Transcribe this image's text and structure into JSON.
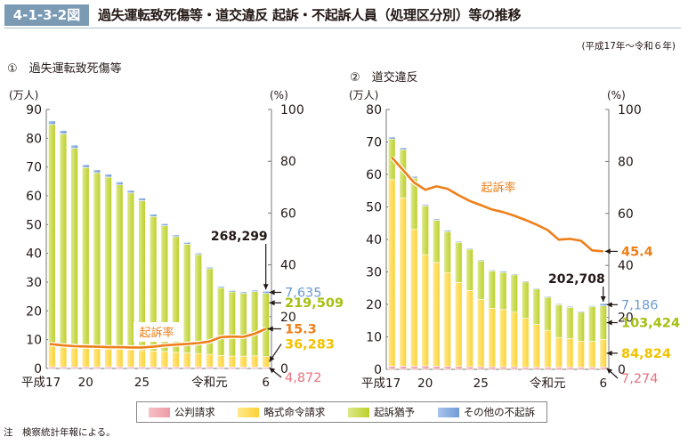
{
  "header": {
    "figure_number": "4-1-3-2図",
    "title": "過失運転致死傷等・道交違反 起訴・不起訴人員（処理区分別）等の推移",
    "period": "(平成17年～令和６年)"
  },
  "legend": [
    {
      "label": "公判請求",
      "color": "#f0a0a8"
    },
    {
      "label": "略式命令請求",
      "color": "#fcd94a"
    },
    {
      "label": "起訴猶予",
      "color": "#c7d840"
    },
    {
      "label": "その他の不起訴",
      "color": "#7ea7dc"
    }
  ],
  "note": "注　検察統計年報による。",
  "colors": {
    "rate_line": "#ee7f1a",
    "axis": "#777777"
  },
  "chart_data": [
    {
      "type": "bar",
      "stacked": true,
      "title": "①　過失運転致死傷等",
      "ylabel": "(万人)",
      "y2label": "(%)",
      "ylim": [
        0,
        90
      ],
      "yticks": [
        0,
        10,
        20,
        30,
        40,
        50,
        60,
        70,
        80,
        90
      ],
      "y2lim": [
        0,
        100
      ],
      "y2ticks": [
        0,
        20,
        40,
        60,
        80,
        100
      ],
      "categories": [
        "H17",
        "H18",
        "H19",
        "H20",
        "H21",
        "H22",
        "H23",
        "H24",
        "H25",
        "H26",
        "H27",
        "H28",
        "H29",
        "H30",
        "R1",
        "R2",
        "R3",
        "R4",
        "R5",
        "R6"
      ],
      "xtick_labels": [
        {
          "index": 0,
          "label": "平成17"
        },
        {
          "index": 3,
          "label": "20"
        },
        {
          "index": 8,
          "label": "25"
        },
        {
          "index": 14,
          "label": "令和元"
        },
        {
          "index": 19,
          "label": "6"
        }
      ],
      "series": [
        {
          "name": "公判請求",
          "values": [
            0.6,
            0.6,
            0.6,
            0.6,
            0.6,
            0.6,
            0.6,
            0.6,
            0.6,
            0.6,
            0.6,
            0.6,
            0.6,
            0.6,
            0.6,
            0.5,
            0.5,
            0.5,
            0.5,
            0.49
          ]
        },
        {
          "name": "略式命令請求",
          "values": [
            8.3,
            8.0,
            7.5,
            7.0,
            6.8,
            6.5,
            6.2,
            5.9,
            5.6,
            5.5,
            5.3,
            5.0,
            4.8,
            4.6,
            4.3,
            4.0,
            3.8,
            3.8,
            3.9,
            3.63
          ]
        },
        {
          "name": "起訴猶予",
          "values": [
            75.9,
            72.9,
            68.4,
            62.2,
            60.6,
            59.4,
            57.0,
            54.5,
            52.1,
            46.7,
            43.7,
            40.2,
            37.8,
            34.4,
            29.8,
            23.5,
            22.3,
            21.8,
            22.3,
            21.95
          ]
        },
        {
          "name": "その他の不起訴",
          "values": [
            1.2,
            1.2,
            1.1,
            1.0,
            1.0,
            1.0,
            1.0,
            0.9,
            0.9,
            0.8,
            0.7,
            0.6,
            0.6,
            0.5,
            0.5,
            0.5,
            0.5,
            0.5,
            0.5,
            0.76
          ]
        }
      ],
      "rate_series": {
        "name": "起訴率",
        "values": [
          9.4,
          8.9,
          8.6,
          8.5,
          8.4,
          8.2,
          8.2,
          8.1,
          8.1,
          8.4,
          8.9,
          9.2,
          9.5,
          9.8,
          10.4,
          12.1,
          12.3,
          12.2,
          13.4,
          15.3
        ]
      },
      "annotations": {
        "total_last": "268,299",
        "other_last": "7,635",
        "suspension_last": "219,509",
        "rate_last": "15.3",
        "summary_last": "36,283",
        "trial_last": "4,872",
        "rate_label": "起訴率"
      }
    },
    {
      "type": "bar",
      "stacked": true,
      "title": "②　道交違反",
      "ylabel": "(万人)",
      "y2label": "(%)",
      "ylim": [
        0,
        80
      ],
      "yticks": [
        0,
        10,
        20,
        30,
        40,
        50,
        60,
        70,
        80
      ],
      "y2lim": [
        0,
        100
      ],
      "y2ticks": [
        0,
        20,
        40,
        60,
        80,
        100
      ],
      "categories": [
        "H17",
        "H18",
        "H19",
        "H20",
        "H21",
        "H22",
        "H23",
        "H24",
        "H25",
        "H26",
        "H27",
        "H28",
        "H29",
        "H30",
        "R1",
        "R2",
        "R3",
        "R4",
        "R5",
        "R6"
      ],
      "xtick_labels": [
        {
          "index": 0,
          "label": "平成17"
        },
        {
          "index": 3,
          "label": "20"
        },
        {
          "index": 8,
          "label": "25"
        },
        {
          "index": 14,
          "label": "令和元"
        },
        {
          "index": 19,
          "label": "6"
        }
      ],
      "series": [
        {
          "name": "公判請求",
          "values": [
            1.0,
            1.0,
            1.0,
            1.1,
            1.0,
            0.9,
            0.9,
            0.8,
            0.8,
            0.8,
            0.8,
            0.8,
            0.7,
            0.7,
            0.7,
            0.7,
            0.7,
            0.7,
            0.7,
            0.73
          ]
        },
        {
          "name": "略式命令請求",
          "values": [
            57.4,
            51.8,
            42.1,
            34.2,
            31.9,
            28.9,
            25.8,
            23.5,
            20.7,
            18.0,
            17.6,
            16.8,
            15.0,
            13.1,
            11.3,
            9.1,
            8.8,
            7.9,
            7.9,
            8.48
          ]
        },
        {
          "name": "起訴猶予",
          "values": [
            12.5,
            14.8,
            15.8,
            15.0,
            13.0,
            12.6,
            12.4,
            12.7,
            11.9,
            11.5,
            11.4,
            11.5,
            11.2,
            10.9,
            10.2,
            10.1,
            9.6,
            9.0,
            10.7,
            10.34
          ]
        },
        {
          "name": "その他の不起訴",
          "values": [
            0.6,
            0.6,
            0.5,
            0.4,
            0.4,
            0.4,
            0.3,
            0.3,
            0.3,
            0.3,
            0.4,
            0.3,
            0.3,
            0.3,
            0.3,
            0.3,
            0.3,
            0.3,
            0.3,
            0.72
          ]
        }
      ],
      "rate_series": {
        "name": "起訴率",
        "values": [
          81.5,
          76.7,
          71.9,
          69.1,
          70.4,
          69.5,
          67.0,
          64.8,
          63.2,
          61.5,
          60.5,
          59.1,
          57.5,
          55.7,
          53.6,
          49.9,
          50.2,
          49.5,
          45.8,
          45.4
        ]
      },
      "annotations": {
        "total_last": "202,708",
        "other_last": "7,186",
        "suspension_last": "103,424",
        "rate_last": "45.4",
        "summary_last": "84,824",
        "trial_last": "7,274",
        "rate_label": "起訴率"
      }
    }
  ]
}
